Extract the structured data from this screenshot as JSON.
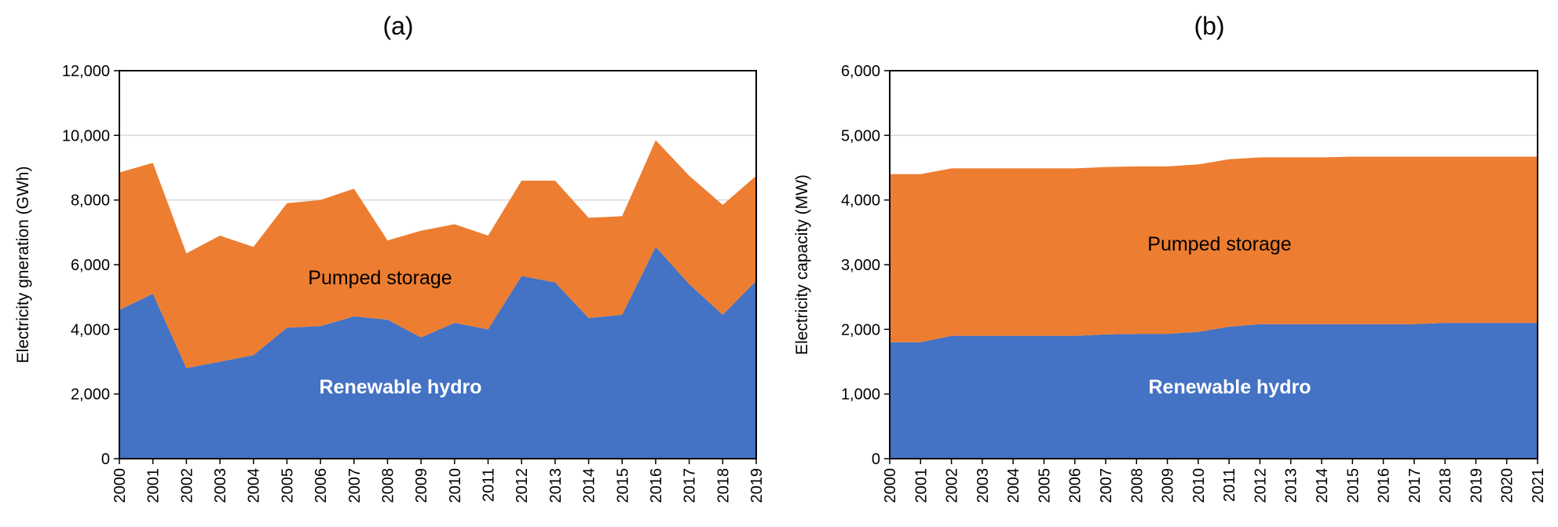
{
  "chart_data": [
    {
      "panel": "(a)",
      "type": "area",
      "stacked": true,
      "title": "(a)",
      "xlabel": "",
      "ylabel": "Electricity gneration (GWh)",
      "ylim": [
        0,
        12000
      ],
      "yticks": [
        0,
        2000,
        4000,
        6000,
        8000,
        10000,
        12000
      ],
      "ytick_labels": [
        "0",
        "2,000",
        "4,000",
        "6,000",
        "8,000",
        "10,000",
        "12,000"
      ],
      "grid": true,
      "categories": [
        "2000",
        "2001",
        "2002",
        "2003",
        "2004",
        "2005",
        "2006",
        "2007",
        "2008",
        "2009",
        "2010",
        "2011",
        "2012",
        "2013",
        "2014",
        "2015",
        "2016",
        "2017",
        "2018",
        "2019"
      ],
      "series": [
        {
          "name": "Renewable hydro",
          "color": "#4472c4",
          "label_color": "#ffffff",
          "values": [
            4600,
            5100,
            2800,
            3000,
            3200,
            4050,
            4100,
            4400,
            4300,
            3750,
            4200,
            4000,
            5650,
            5450,
            4350,
            4450,
            6550,
            5400,
            4450,
            5500
          ]
        },
        {
          "name": "Pumped storage",
          "color": "#ed7d31",
          "label_color": "#000000",
          "values": [
            4250,
            4050,
            3550,
            3900,
            3350,
            3850,
            3900,
            3950,
            2450,
            3300,
            3050,
            2900,
            2950,
            3150,
            3100,
            3050,
            3300,
            3350,
            3400,
            3250
          ]
        }
      ]
    },
    {
      "panel": "(b)",
      "type": "area",
      "stacked": true,
      "title": "(b)",
      "xlabel": "",
      "ylabel": "Electricity capacity (MW)",
      "ylim": [
        0,
        6000
      ],
      "yticks": [
        0,
        1000,
        2000,
        3000,
        4000,
        5000,
        6000
      ],
      "ytick_labels": [
        "0",
        "1,000",
        "2,000",
        "3,000",
        "4,000",
        "5,000",
        "6,000"
      ],
      "grid": true,
      "categories": [
        "2000",
        "2001",
        "2002",
        "2003",
        "2004",
        "2005",
        "2006",
        "2007",
        "2008",
        "2009",
        "2010",
        "2011",
        "2012",
        "2013",
        "2014",
        "2015",
        "2016",
        "2017",
        "2018",
        "2019",
        "2020",
        "2021"
      ],
      "series": [
        {
          "name": "Renewable hydro",
          "color": "#4472c4",
          "label_color": "#ffffff",
          "values": [
            1800,
            1800,
            1900,
            1900,
            1900,
            1900,
            1900,
            1920,
            1930,
            1930,
            1960,
            2040,
            2080,
            2080,
            2080,
            2080,
            2080,
            2080,
            2100,
            2100,
            2100,
            2100
          ]
        },
        {
          "name": "Pumped storage",
          "color": "#ed7d31",
          "label_color": "#000000",
          "values": [
            2600,
            2600,
            2590,
            2590,
            2590,
            2590,
            2590,
            2590,
            2590,
            2590,
            2590,
            2590,
            2580,
            2580,
            2580,
            2590,
            2590,
            2590,
            2570,
            2570,
            2570,
            2570
          ]
        }
      ]
    }
  ]
}
